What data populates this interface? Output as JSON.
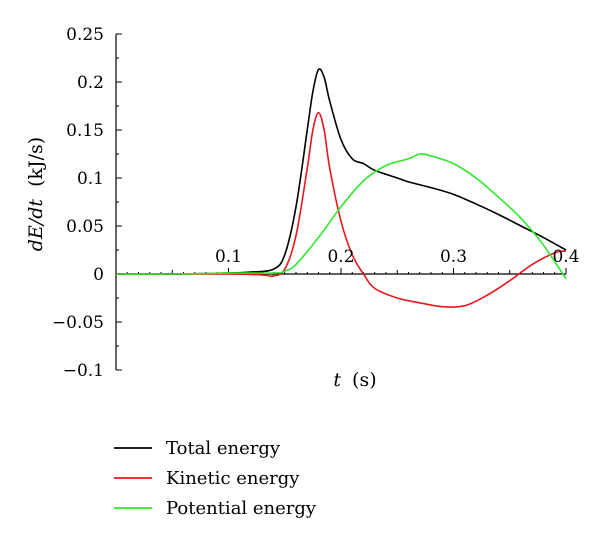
{
  "chart_data": {
    "type": "line",
    "xlabel": {
      "var": "t",
      "unit": "(s)"
    },
    "ylabel": {
      "var": "dE/dt",
      "unit": "(kJ/s)"
    },
    "xlim": [
      0,
      0.4
    ],
    "ylim": [
      -0.1,
      0.25
    ],
    "xticks": [
      0.1,
      0.2,
      0.3,
      0.4
    ],
    "xtick_labels": [
      "0.1",
      "0.2",
      "0.3",
      "0.4"
    ],
    "yticks": [
      -0.1,
      -0.05,
      0,
      0.05,
      0.1,
      0.15,
      0.2,
      0.25
    ],
    "ytick_labels": [
      "−0.1",
      "−0.05",
      "0",
      "0.05",
      "0.1",
      "0.15",
      "0.2",
      "0.25"
    ],
    "grid": false,
    "legend_position": "bottom",
    "series": [
      {
        "name": "Total energy",
        "color": "#000000",
        "x": [
          0,
          0.05,
          0.1,
          0.12,
          0.14,
          0.15,
          0.16,
          0.17,
          0.175,
          0.18,
          0.185,
          0.19,
          0.2,
          0.21,
          0.22,
          0.23,
          0.25,
          0.26,
          0.28,
          0.3,
          0.32,
          0.34,
          0.36,
          0.38,
          0.4
        ],
        "y": [
          0,
          0,
          0.001,
          0.002,
          0.005,
          0.02,
          0.07,
          0.15,
          0.19,
          0.213,
          0.205,
          0.18,
          0.14,
          0.12,
          0.115,
          0.108,
          0.1,
          0.096,
          0.09,
          0.083,
          0.073,
          0.062,
          0.05,
          0.038,
          0.025
        ]
      },
      {
        "name": "Kinetic energy",
        "color": "#e8181c",
        "x": [
          0,
          0.05,
          0.1,
          0.13,
          0.14,
          0.15,
          0.16,
          0.17,
          0.175,
          0.18,
          0.185,
          0.19,
          0.2,
          0.21,
          0.22,
          0.23,
          0.25,
          0.27,
          0.29,
          0.31,
          0.33,
          0.35,
          0.37,
          0.39,
          0.4
        ],
        "y": [
          0,
          0,
          0,
          -0.001,
          -0.002,
          0.005,
          0.04,
          0.11,
          0.15,
          0.168,
          0.15,
          0.11,
          0.055,
          0.02,
          0,
          -0.015,
          -0.025,
          -0.03,
          -0.034,
          -0.033,
          -0.022,
          -0.007,
          0.01,
          0.022,
          0.024
        ]
      },
      {
        "name": "Potential energy",
        "color": "#2ee82e",
        "x": [
          0,
          0.05,
          0.1,
          0.14,
          0.15,
          0.16,
          0.18,
          0.2,
          0.22,
          0.24,
          0.26,
          0.27,
          0.28,
          0.3,
          0.32,
          0.34,
          0.36,
          0.38,
          0.4
        ],
        "y": [
          0,
          0,
          0.001,
          0.001,
          0.003,
          0.01,
          0.038,
          0.07,
          0.097,
          0.113,
          0.12,
          0.125,
          0.123,
          0.115,
          0.1,
          0.08,
          0.058,
          0.03,
          -0.005
        ]
      }
    ]
  }
}
